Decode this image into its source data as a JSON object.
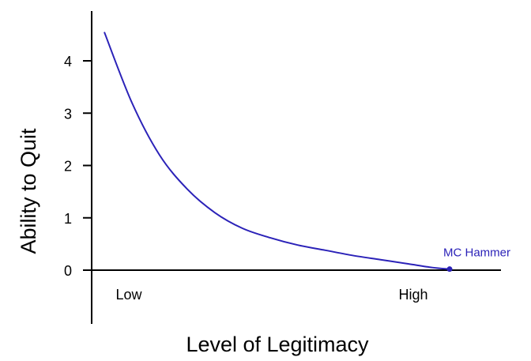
{
  "chart_data": {
    "type": "line",
    "title": "",
    "xlabel": "Level of Legitimacy",
    "ylabel": "Ability to Quit",
    "ylim": [
      0,
      4.6
    ],
    "yticks": [
      0,
      1,
      2,
      3,
      4
    ],
    "x_category_labels": [
      "Low",
      "High"
    ],
    "series": [
      {
        "color": "#2b22b8",
        "x": [
          0,
          0.08,
          0.16,
          0.24,
          0.32,
          0.4,
          0.48,
          0.56,
          0.64,
          0.72,
          0.8,
          0.88,
          0.95,
          1
        ],
        "y": [
          4.55,
          3.2,
          2.2,
          1.55,
          1.1,
          0.8,
          0.62,
          0.48,
          0.38,
          0.28,
          0.2,
          0.12,
          0.05,
          0.02
        ]
      }
    ],
    "annotations": [
      {
        "label": "MC Hammer",
        "x": 1,
        "y": 0.02
      }
    ],
    "grid": false,
    "legend": "none"
  }
}
